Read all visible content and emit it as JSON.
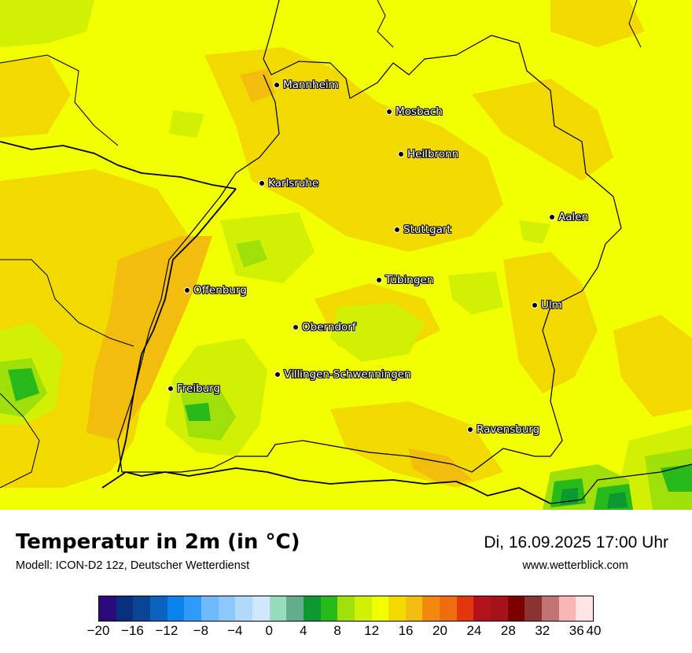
{
  "map": {
    "cities": [
      {
        "name": "Mannheim"
      },
      {
        "name": "Mosbach"
      },
      {
        "name": "Heilbronn"
      },
      {
        "name": "Karlsruhe"
      },
      {
        "name": "Aalen"
      },
      {
        "name": "Stuttgart"
      },
      {
        "name": "Tübingen"
      },
      {
        "name": "Offenburg"
      },
      {
        "name": "Ulm"
      },
      {
        "name": "Oberndorf"
      },
      {
        "name": "Villingen-Schwenningen"
      },
      {
        "name": "Freiburg"
      },
      {
        "name": "Ravensburg"
      }
    ]
  },
  "footer": {
    "title": "Temperatur in 2m (in °C)",
    "model": "Modell: ICON-D2 12z, Deutscher Wetterdienst",
    "datetime": "Di, 16.09.2025 17:00 Uhr",
    "website": "www.wetterblick.com"
  },
  "legend": {
    "colors": [
      "#2d0a7c",
      "#08307f",
      "#0a4595",
      "#0b63bf",
      "#0a83ec",
      "#2e9bfb",
      "#6db9fc",
      "#8dc8fc",
      "#b0d9fc",
      "#d1e8fc",
      "#96dcbe",
      "#63ad8c",
      "#0c9a30",
      "#28ba1b",
      "#9fdf0a",
      "#d1f003",
      "#f2ff00",
      "#f2d900",
      "#f2bd0c",
      "#f3880c",
      "#f06d0f",
      "#e4360c",
      "#b3121a",
      "#a5121a",
      "#7c0000",
      "#8b3232",
      "#c27474",
      "#fab5b5",
      "#fde3e3"
    ],
    "ticks": [
      "−20",
      "−16",
      "−12",
      "−8",
      "−4",
      "0",
      "4",
      "8",
      "12",
      "16",
      "20",
      "24",
      "28",
      "32",
      "36",
      "40"
    ]
  },
  "colors": {
    "base": "#f2ff00",
    "warm": "#f2d900",
    "warmer": "#f2bd0c",
    "cool": "#d1f003",
    "cooler": "#9fdf0a",
    "green": "#28ba1b",
    "darkgreen": "#0c9a30"
  }
}
